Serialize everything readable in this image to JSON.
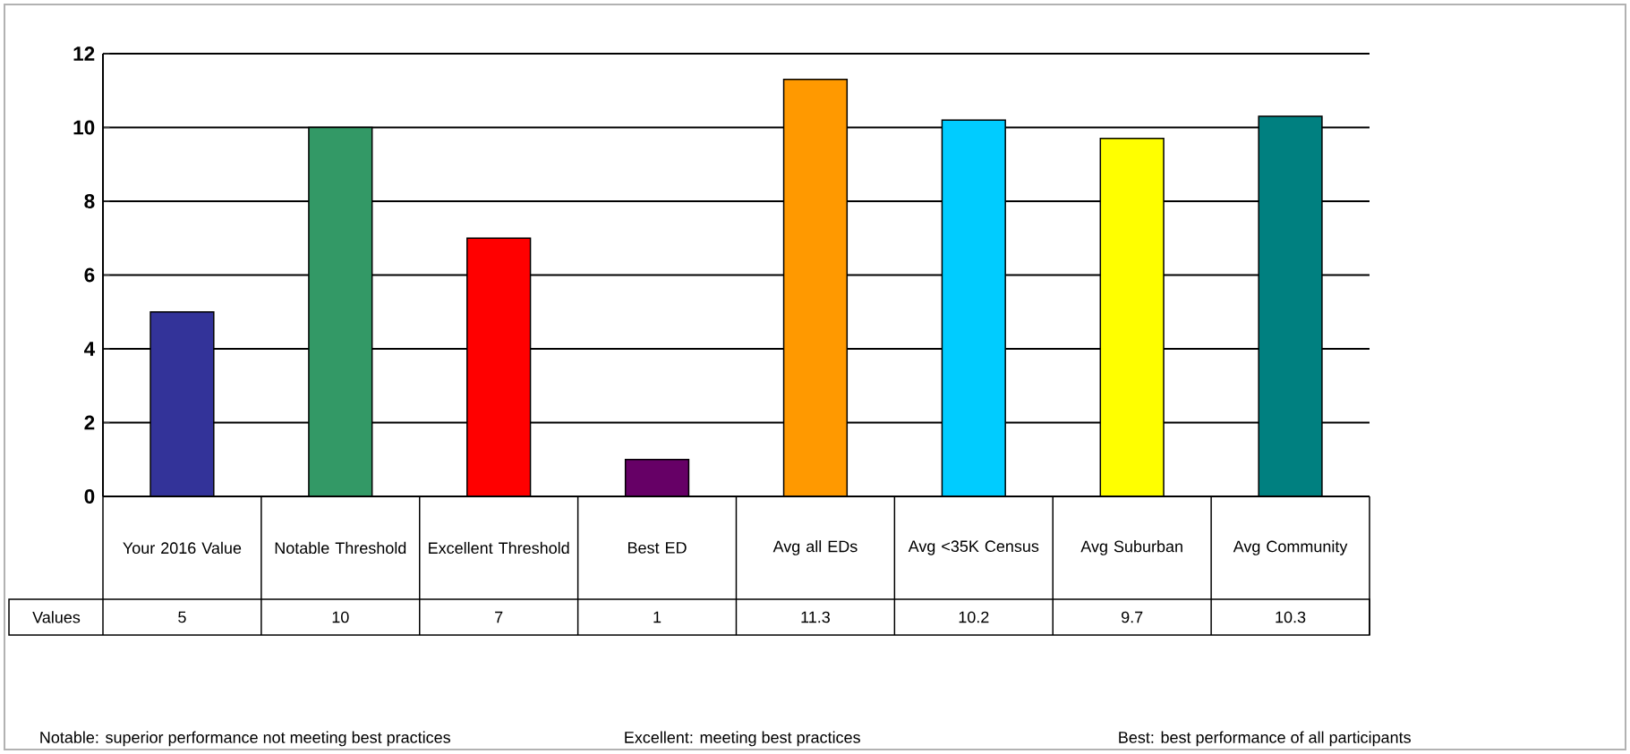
{
  "chart_data": {
    "type": "bar",
    "categories": [
      "Your 2016 Value",
      "Notable Threshold",
      "Excellent Threshold",
      "Best ED",
      "Avg all EDs",
      "Avg <35K Census",
      "Avg Suburban",
      "Avg Community"
    ],
    "values": [
      5,
      10,
      7,
      1,
      11.3,
      10.2,
      9.7,
      10.3
    ],
    "colors": [
      "#333399",
      "#339966",
      "#ff0000",
      "#660066",
      "#ff9900",
      "#00ccff",
      "#ffff00",
      "#008080"
    ],
    "ylim": [
      0,
      12
    ],
    "yticks": [
      0,
      2,
      4,
      6,
      8,
      10,
      12
    ],
    "grid": "y",
    "data_labels": true,
    "annotations": [
      "Values",
      "Notable: superior performance not meeting best practices",
      "Excellent: meeting best practices",
      "Best: best performance of all participants"
    ]
  }
}
